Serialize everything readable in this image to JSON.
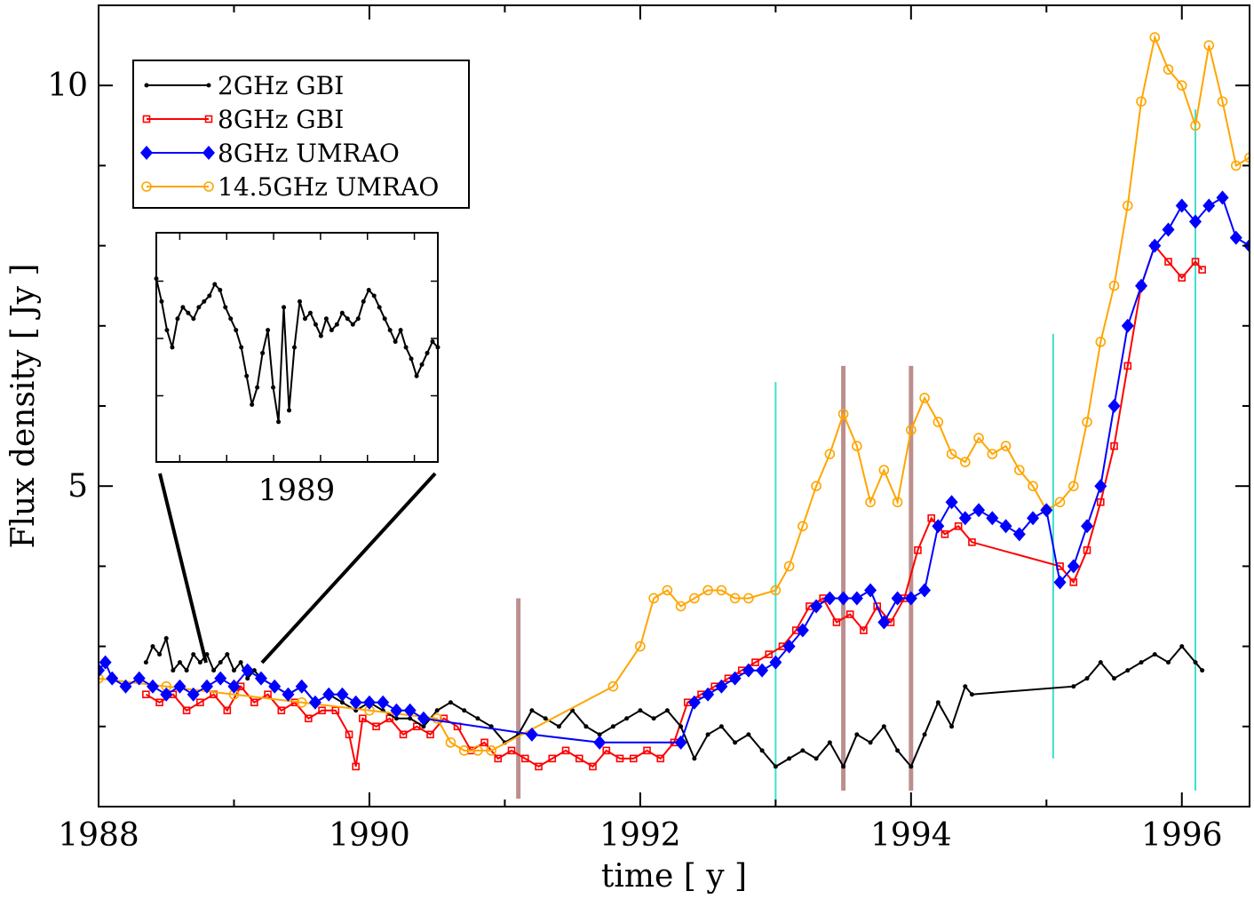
{
  "chart_data": {
    "type": "line",
    "title": "",
    "xlabel": "time [ y ]",
    "ylabel": "Flux density [ Jy ]",
    "xlim": [
      1988,
      1996.5
    ],
    "ylim": [
      1.0,
      11.0
    ],
    "xticks": [
      1988,
      1990,
      1992,
      1994,
      1996
    ],
    "xtick_labels": [
      "1988",
      "1990",
      "1992",
      "1994",
      "1996"
    ],
    "yticks": [
      5,
      10
    ],
    "ytick_labels": [
      "5",
      "10"
    ],
    "legend_position": "top-left",
    "grid": false,
    "series": [
      {
        "name": "2GHz GBI",
        "color": "#000000",
        "marker": "circle-small",
        "x": [
          1988.35,
          1988.4,
          1988.45,
          1988.5,
          1988.55,
          1988.6,
          1988.65,
          1988.7,
          1988.75,
          1988.8,
          1988.85,
          1988.9,
          1988.95,
          1989.0,
          1989.05,
          1989.1,
          1989.15,
          1989.2,
          1989.3,
          1989.4,
          1989.5,
          1989.6,
          1989.7,
          1989.8,
          1989.9,
          1990.0,
          1990.1,
          1990.2,
          1990.3,
          1990.4,
          1990.5,
          1990.6,
          1990.7,
          1990.8,
          1990.9,
          1991.0,
          1991.1,
          1991.2,
          1991.3,
          1991.4,
          1991.5,
          1991.6,
          1991.7,
          1991.8,
          1991.9,
          1992.0,
          1992.1,
          1992.2,
          1992.3,
          1992.4,
          1992.5,
          1992.6,
          1992.7,
          1992.8,
          1992.9,
          1993.0,
          1993.1,
          1993.2,
          1993.3,
          1993.4,
          1993.5,
          1993.6,
          1993.7,
          1993.8,
          1993.9,
          1994.0,
          1994.1,
          1994.2,
          1994.3,
          1994.4,
          1994.45,
          1995.2,
          1995.3,
          1995.4,
          1995.5,
          1995.6,
          1995.7,
          1995.8,
          1995.9,
          1996.0,
          1996.1,
          1996.15
        ],
        "values": [
          2.8,
          3.0,
          2.9,
          3.1,
          2.7,
          2.8,
          2.7,
          2.9,
          2.8,
          2.9,
          2.7,
          2.8,
          2.9,
          2.7,
          2.8,
          2.6,
          2.7,
          2.6,
          2.5,
          2.4,
          2.5,
          2.3,
          2.4,
          2.3,
          2.2,
          2.3,
          2.2,
          2.1,
          2.1,
          2.0,
          2.2,
          2.3,
          2.2,
          2.1,
          2.0,
          1.8,
          1.9,
          2.2,
          2.1,
          2.0,
          2.2,
          2.0,
          1.9,
          2.0,
          2.1,
          2.2,
          2.1,
          2.2,
          2.0,
          1.6,
          1.9,
          2.0,
          1.8,
          1.9,
          1.7,
          1.5,
          1.6,
          1.7,
          1.6,
          1.8,
          1.5,
          1.9,
          1.8,
          2.0,
          1.7,
          1.5,
          1.9,
          2.3,
          2.0,
          2.5,
          2.4,
          2.5,
          2.6,
          2.8,
          2.6,
          2.7,
          2.8,
          2.9,
          2.8,
          3.0,
          2.8,
          2.7
        ]
      },
      {
        "name": "8GHz GBI",
        "color": "#ff0000",
        "marker": "square-open",
        "x": [
          1988.35,
          1988.45,
          1988.55,
          1988.65,
          1988.75,
          1988.85,
          1988.95,
          1989.05,
          1989.15,
          1989.25,
          1989.35,
          1989.45,
          1989.55,
          1989.65,
          1989.75,
          1989.85,
          1989.9,
          1989.95,
          1990.05,
          1990.15,
          1990.25,
          1990.35,
          1990.45,
          1990.55,
          1990.65,
          1990.75,
          1990.85,
          1990.95,
          1991.05,
          1991.15,
          1991.25,
          1991.35,
          1991.45,
          1991.55,
          1991.65,
          1991.75,
          1991.85,
          1991.95,
          1992.05,
          1992.15,
          1992.25,
          1992.35,
          1992.45,
          1992.55,
          1992.65,
          1992.75,
          1992.85,
          1992.95,
          1993.05,
          1993.15,
          1993.25,
          1993.35,
          1993.45,
          1993.55,
          1993.65,
          1993.75,
          1993.85,
          1993.95,
          1994.05,
          1994.15,
          1994.25,
          1994.35,
          1994.45,
          1995.1,
          1995.2,
          1995.3,
          1995.4,
          1995.5,
          1995.6,
          1995.7,
          1995.8,
          1995.9,
          1996.0,
          1996.1,
          1996.15
        ],
        "values": [
          2.4,
          2.3,
          2.4,
          2.2,
          2.3,
          2.4,
          2.2,
          2.5,
          2.3,
          2.4,
          2.2,
          2.3,
          2.1,
          2.2,
          2.2,
          1.9,
          1.5,
          2.1,
          2.0,
          2.1,
          1.9,
          2.0,
          1.9,
          2.1,
          2.0,
          1.7,
          1.8,
          1.6,
          1.7,
          1.6,
          1.5,
          1.6,
          1.7,
          1.6,
          1.5,
          1.7,
          1.6,
          1.6,
          1.7,
          1.6,
          1.8,
          2.3,
          2.4,
          2.5,
          2.6,
          2.7,
          2.8,
          2.9,
          3.0,
          3.2,
          3.5,
          3.6,
          3.3,
          3.4,
          3.2,
          3.5,
          3.3,
          3.6,
          4.2,
          4.6,
          4.4,
          4.5,
          4.3,
          4.0,
          3.8,
          4.2,
          4.8,
          5.5,
          6.5,
          7.5,
          8.0,
          7.8,
          7.6,
          7.8,
          7.7
        ]
      },
      {
        "name": "8GHz UMRAO",
        "color": "#0000ff",
        "marker": "diamond-filled",
        "x": [
          1988.0,
          1988.05,
          1988.1,
          1988.2,
          1988.3,
          1988.4,
          1988.5,
          1988.6,
          1988.7,
          1988.8,
          1988.9,
          1989.0,
          1989.1,
          1989.2,
          1989.3,
          1989.4,
          1989.5,
          1989.6,
          1989.7,
          1989.8,
          1989.9,
          1990.0,
          1990.1,
          1990.2,
          1990.3,
          1990.4,
          1991.2,
          1991.7,
          1992.3,
          1992.4,
          1992.5,
          1992.6,
          1992.7,
          1992.8,
          1992.9,
          1993.0,
          1993.1,
          1993.2,
          1993.3,
          1993.4,
          1993.5,
          1993.6,
          1993.7,
          1993.8,
          1993.9,
          1994.0,
          1994.1,
          1994.2,
          1994.3,
          1994.4,
          1994.5,
          1994.6,
          1994.7,
          1994.8,
          1994.9,
          1995.0,
          1995.1,
          1995.2,
          1995.3,
          1995.4,
          1995.5,
          1995.6,
          1995.7,
          1995.8,
          1995.9,
          1996.0,
          1996.1,
          1996.2,
          1996.3,
          1996.4,
          1996.5
        ],
        "values": [
          2.7,
          2.8,
          2.6,
          2.5,
          2.6,
          2.5,
          2.4,
          2.5,
          2.4,
          2.5,
          2.6,
          2.5,
          2.7,
          2.6,
          2.5,
          2.4,
          2.5,
          2.3,
          2.4,
          2.4,
          2.3,
          2.3,
          2.3,
          2.2,
          2.2,
          2.1,
          1.9,
          1.8,
          1.8,
          2.3,
          2.4,
          2.5,
          2.6,
          2.7,
          2.7,
          2.8,
          3.0,
          3.2,
          3.5,
          3.6,
          3.6,
          3.6,
          3.7,
          3.3,
          3.6,
          3.6,
          3.7,
          4.5,
          4.8,
          4.6,
          4.7,
          4.6,
          4.5,
          4.4,
          4.6,
          4.7,
          3.8,
          4.0,
          4.5,
          5.0,
          6.0,
          7.0,
          7.5,
          8.0,
          8.2,
          8.5,
          8.3,
          8.5,
          8.6,
          8.1,
          8.0
        ]
      },
      {
        "name": "14.5GHz UMRAO",
        "color": "#ffa500",
        "marker": "circle-open",
        "x": [
          1988.0,
          1988.5,
          1989.0,
          1989.5,
          1990.0,
          1990.5,
          1990.6,
          1990.7,
          1990.8,
          1990.9,
          1991.8,
          1992.0,
          1992.1,
          1992.2,
          1992.3,
          1992.4,
          1992.5,
          1992.6,
          1992.7,
          1992.8,
          1993.0,
          1993.1,
          1993.2,
          1993.3,
          1993.4,
          1993.5,
          1993.6,
          1993.7,
          1993.8,
          1993.9,
          1994.0,
          1994.1,
          1994.2,
          1994.3,
          1994.4,
          1994.5,
          1994.6,
          1994.7,
          1994.8,
          1994.9,
          1995.0,
          1995.1,
          1995.2,
          1995.3,
          1995.4,
          1995.5,
          1995.6,
          1995.7,
          1995.8,
          1995.9,
          1996.0,
          1996.1,
          1996.2,
          1996.3,
          1996.4,
          1996.5
        ],
        "values": [
          2.6,
          2.5,
          2.4,
          2.3,
          2.2,
          2.1,
          1.8,
          1.7,
          1.7,
          1.7,
          2.5,
          3.0,
          3.6,
          3.7,
          3.5,
          3.6,
          3.7,
          3.7,
          3.6,
          3.6,
          3.7,
          4.0,
          4.5,
          5.0,
          5.4,
          5.9,
          5.5,
          4.8,
          5.2,
          4.8,
          5.7,
          6.1,
          5.8,
          5.4,
          5.3,
          5.6,
          5.4,
          5.5,
          5.2,
          5.0,
          4.7,
          4.8,
          5.0,
          5.8,
          6.8,
          7.5,
          8.5,
          9.8,
          10.6,
          10.2,
          10.0,
          9.5,
          10.5,
          9.8,
          9.0,
          9.1
        ]
      }
    ],
    "vertical_markers": [
      {
        "x": 1991.1,
        "color": "#bc8f8f",
        "style": "thick",
        "ymin": 1.1,
        "ymax": 3.6
      },
      {
        "x": 1993.0,
        "color": "#40e0d0",
        "style": "thin",
        "ymin": 1.0,
        "ymax": 6.3
      },
      {
        "x": 1993.5,
        "color": "#bc8f8f",
        "style": "thick",
        "ymin": 1.2,
        "ymax": 6.5
      },
      {
        "x": 1994.0,
        "color": "#bc8f8f",
        "style": "thick",
        "ymin": 1.2,
        "ymax": 6.5
      },
      {
        "x": 1995.05,
        "color": "#40e0d0",
        "style": "thin",
        "ymin": 1.6,
        "ymax": 6.9
      },
      {
        "x": 1996.1,
        "color": "#40e0d0",
        "style": "thin",
        "ymin": 1.2,
        "ymax": 9.7
      }
    ],
    "inset": {
      "xlabel": "1989",
      "values": [
        7.7,
        7.3,
        6.8,
        6.5,
        7.0,
        7.2,
        7.1,
        7.0,
        7.2,
        7.3,
        7.4,
        7.6,
        7.5,
        7.2,
        7.0,
        6.8,
        6.5,
        6.0,
        5.5,
        5.8,
        6.4,
        6.8,
        5.8,
        5.2,
        7.2,
        5.4,
        6.5,
        7.3,
        7.0,
        7.1,
        6.9,
        6.7,
        7.0,
        6.8,
        6.9,
        7.1,
        7.0,
        6.9,
        7.0,
        7.3,
        7.5,
        7.4,
        7.2,
        7.0,
        6.8,
        6.6,
        6.8,
        6.5,
        6.3,
        6.0,
        6.2,
        6.4,
        6.6,
        6.5
      ]
    }
  },
  "legend": [
    {
      "label": "2GHz GBI",
      "series_index": 0
    },
    {
      "label": "8GHz GBI",
      "series_index": 1
    },
    {
      "label": "8GHz UMRAO",
      "series_index": 2
    },
    {
      "label": "14.5GHz UMRAO",
      "series_index": 3
    }
  ]
}
